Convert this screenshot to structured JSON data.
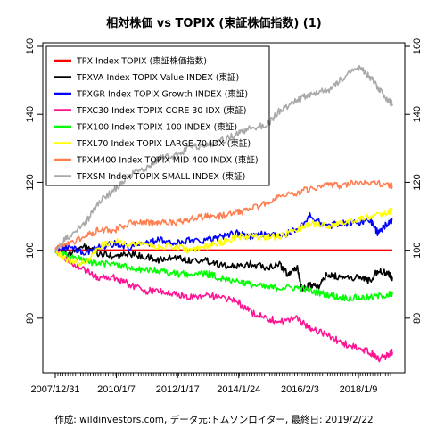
{
  "chart_data": {
    "type": "line",
    "title": "相対株価 vs TOPIX (東証株価指数) (1)",
    "xlabel": "",
    "ylabel": "",
    "x_tick_labels": [
      "2007/12/31",
      "2010/1/7",
      "2012/1/17",
      "2014/1/24",
      "2016/2/3",
      "2018/1/9"
    ],
    "x_tick_dates": [
      "2007-12-31",
      "2010-01-07",
      "2012-01-17",
      "2014-01-24",
      "2016-02-03",
      "2018-01-09"
    ],
    "x_range": [
      "2007-12-31",
      "2019-02-22"
    ],
    "y_ticks": [
      80,
      100,
      120,
      140,
      160
    ],
    "ylim": [
      65,
      160
    ],
    "y_axes": "left and right",
    "legend_position": "top-left",
    "caption": "作成: wildinvestors.com, データ元:トムソンロイター, 最終日: 2019/2/22",
    "series": [
      {
        "name": "TPX Index TOPIX (東証株価指数)",
        "color": "#ff0000",
        "x": [
          "2007-12-31",
          "2019-02-22"
        ],
        "values": [
          100,
          100
        ]
      },
      {
        "name": "TPXVA Index TOPIX Value INDEX (東証)",
        "color": "#000000",
        "x": [
          "2007-12-31",
          "2008-06-01",
          "2009-01-01",
          "2009-06-01",
          "2010-01-01",
          "2010-06-01",
          "2011-01-01",
          "2011-06-01",
          "2012-01-01",
          "2012-06-01",
          "2013-01-01",
          "2013-06-01",
          "2014-01-01",
          "2014-06-01",
          "2015-01-01",
          "2015-06-01",
          "2015-09-01",
          "2016-01-01",
          "2016-03-01",
          "2016-06-01",
          "2016-09-01",
          "2017-01-01",
          "2017-06-01",
          "2018-01-01",
          "2018-06-01",
          "2018-09-01",
          "2019-01-01",
          "2019-02-22"
        ],
        "values": [
          100,
          99,
          101,
          99,
          98,
          99,
          98,
          97,
          98,
          97,
          97,
          96,
          95,
          96,
          95,
          96,
          93,
          95,
          88,
          90,
          89,
          93,
          92,
          92,
          91,
          94,
          93,
          92
        ]
      },
      {
        "name": "TPXGR Index TOPIX Growth INDEX (東証)",
        "color": "#0000ff",
        "x": [
          "2007-12-31",
          "2008-06-01",
          "2009-01-01",
          "2009-06-01",
          "2010-01-01",
          "2010-06-01",
          "2011-01-01",
          "2011-06-01",
          "2012-01-01",
          "2012-06-01",
          "2013-01-01",
          "2013-06-01",
          "2014-01-01",
          "2014-06-01",
          "2015-01-01",
          "2015-06-01",
          "2016-01-01",
          "2016-06-01",
          "2017-01-01",
          "2017-06-01",
          "2018-01-01",
          "2018-06-01",
          "2018-09-01",
          "2019-01-01",
          "2019-02-22"
        ],
        "values": [
          100,
          101,
          99,
          101,
          102,
          101,
          102,
          103,
          102,
          103,
          103,
          104,
          105,
          104,
          105,
          104,
          106,
          110,
          107,
          108,
          108,
          109,
          105,
          108,
          109
        ]
      },
      {
        "name": "TPXC30 Index TOPIX CORE 30 IDX (東証)",
        "color": "#ff1493",
        "x": [
          "2007-12-31",
          "2008-06-01",
          "2009-01-01",
          "2009-06-01",
          "2010-01-01",
          "2010-06-01",
          "2011-01-01",
          "2011-06-01",
          "2012-01-01",
          "2012-06-01",
          "2013-01-01",
          "2013-06-01",
          "2014-01-01",
          "2014-06-01",
          "2015-01-01",
          "2015-06-01",
          "2016-01-01",
          "2016-06-01",
          "2017-01-01",
          "2017-06-01",
          "2018-01-01",
          "2018-06-01",
          "2018-09-01",
          "2019-01-01",
          "2019-02-22"
        ],
        "values": [
          100,
          97,
          94,
          92,
          92,
          90,
          88,
          88,
          87,
          86,
          87,
          86,
          85,
          82,
          80,
          79,
          80,
          77,
          75,
          73,
          71,
          70,
          68,
          69,
          70
        ]
      },
      {
        "name": "TPX100 Index TOPIX 100 INDEX (東証)",
        "color": "#00ff00",
        "x": [
          "2007-12-31",
          "2008-06-01",
          "2009-01-01",
          "2009-06-01",
          "2010-01-01",
          "2010-06-01",
          "2011-01-01",
          "2011-06-01",
          "2012-01-01",
          "2012-06-01",
          "2013-01-01",
          "2013-06-01",
          "2014-01-01",
          "2014-06-01",
          "2015-01-01",
          "2015-06-01",
          "2016-01-01",
          "2016-06-01",
          "2017-01-01",
          "2017-06-01",
          "2018-01-01",
          "2018-06-01",
          "2019-01-01",
          "2019-02-22"
        ],
        "values": [
          100,
          98,
          97,
          96,
          96,
          95,
          94,
          94,
          93,
          93,
          93,
          92,
          91,
          90,
          89,
          89,
          89,
          88,
          87,
          86,
          86,
          86,
          87,
          87
        ]
      },
      {
        "name": "TPXL70 Index TOPIX LARGE 70 IDX (東証)",
        "color": "#ffff00",
        "x": [
          "2007-12-31",
          "2008-06-01",
          "2009-01-01",
          "2009-06-01",
          "2010-01-01",
          "2010-06-01",
          "2011-01-01",
          "2011-06-01",
          "2012-01-01",
          "2012-06-01",
          "2013-01-01",
          "2013-06-01",
          "2014-01-01",
          "2014-06-01",
          "2015-01-01",
          "2015-06-01",
          "2016-01-01",
          "2016-06-01",
          "2017-01-01",
          "2017-06-01",
          "2018-01-01",
          "2018-06-01",
          "2019-01-01",
          "2019-02-22"
        ],
        "values": [
          100,
          97,
          96,
          101,
          103,
          102,
          102,
          101,
          101,
          100,
          101,
          102,
          104,
          104,
          104,
          104,
          106,
          108,
          107,
          108,
          109,
          110,
          111,
          112
        ]
      },
      {
        "name": "TPXM400 Index TOPIX MID 400 INDX (東証)",
        "color": "#ff7f50",
        "x": [
          "2007-12-31",
          "2008-06-01",
          "2009-01-01",
          "2009-06-01",
          "2010-01-01",
          "2010-06-01",
          "2011-01-01",
          "2011-06-01",
          "2012-01-01",
          "2012-06-01",
          "2013-01-01",
          "2013-06-01",
          "2014-01-01",
          "2014-06-01",
          "2015-01-01",
          "2015-06-01",
          "2016-01-01",
          "2016-06-01",
          "2017-01-01",
          "2017-06-01",
          "2018-01-01",
          "2018-06-01",
          "2019-01-01",
          "2019-02-22"
        ],
        "values": [
          100,
          102,
          104,
          106,
          106,
          108,
          108,
          108,
          108,
          109,
          110,
          110,
          111,
          112,
          114,
          116,
          117,
          118,
          119,
          119,
          120,
          120,
          119,
          119
        ]
      },
      {
        "name": "TPXSM Index TOPIX SMALL INDEX (東証)",
        "color": "#a9a9a9",
        "x": [
          "2007-12-31",
          "2008-06-01",
          "2009-01-01",
          "2009-06-01",
          "2010-01-01",
          "2010-06-01",
          "2011-01-01",
          "2011-06-01",
          "2012-01-01",
          "2012-06-01",
          "2013-01-01",
          "2013-06-01",
          "2014-01-01",
          "2014-06-01",
          "2015-01-01",
          "2015-06-01",
          "2016-01-01",
          "2016-06-01",
          "2017-01-01",
          "2017-06-01",
          "2018-01-01",
          "2018-06-01",
          "2018-09-01",
          "2019-01-01",
          "2019-02-22"
        ],
        "values": [
          100,
          104,
          108,
          114,
          118,
          122,
          124,
          127,
          128,
          130,
          131,
          132,
          134,
          136,
          137,
          141,
          144,
          146,
          147,
          150,
          154,
          151,
          148,
          144,
          143
        ]
      }
    ]
  }
}
